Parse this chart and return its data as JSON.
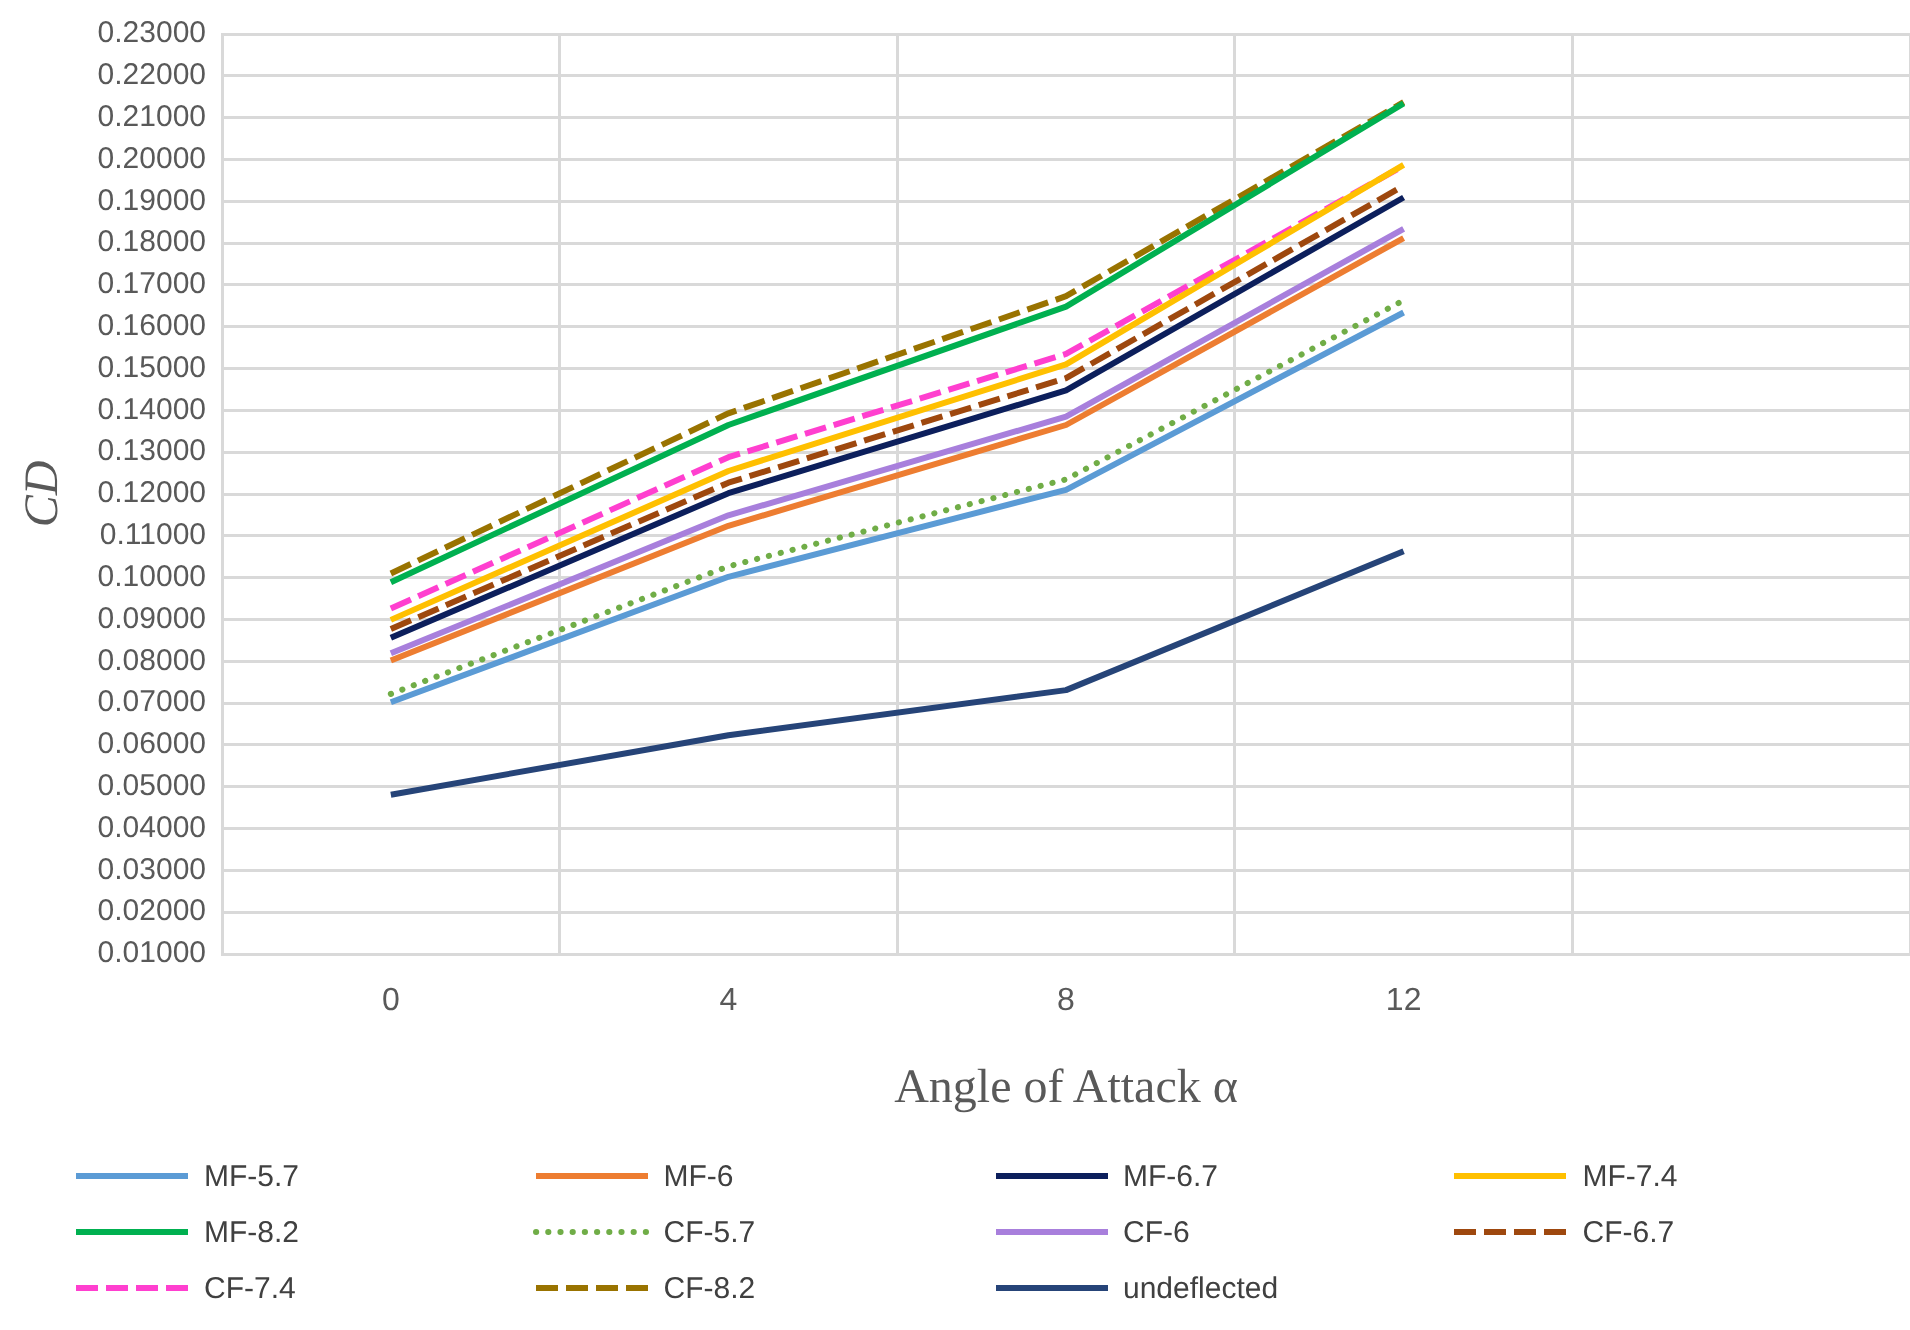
{
  "chart_data": {
    "type": "line",
    "xlabel": "Angle of Attack α",
    "ylabel": "CD",
    "categories": [
      "0",
      "4",
      "8",
      "12",
      null
    ],
    "ylim": [
      0.01,
      0.23
    ],
    "yticks": [
      {
        "value": 0.01,
        "label": "0.01000"
      },
      {
        "value": 0.02,
        "label": "0.02000"
      },
      {
        "value": 0.03,
        "label": "0.03000"
      },
      {
        "value": 0.04,
        "label": "0.04000"
      },
      {
        "value": 0.05,
        "label": "0.05000"
      },
      {
        "value": 0.06,
        "label": "0.06000"
      },
      {
        "value": 0.07,
        "label": "0.07000"
      },
      {
        "value": 0.08,
        "label": "0.08000"
      },
      {
        "value": 0.09,
        "label": "0.09000"
      },
      {
        "value": 0.1,
        "label": "0.10000"
      },
      {
        "value": 0.11,
        "label": "0.11000"
      },
      {
        "value": 0.12,
        "label": "0.12000"
      },
      {
        "value": 0.13,
        "label": "0.13000"
      },
      {
        "value": 0.14,
        "label": "0.14000"
      },
      {
        "value": 0.15,
        "label": "0.15000"
      },
      {
        "value": 0.16,
        "label": "0.16000"
      },
      {
        "value": 0.17,
        "label": "0.17000"
      },
      {
        "value": 0.18,
        "label": "0.18000"
      },
      {
        "value": 0.19,
        "label": "0.19000"
      },
      {
        "value": 0.2,
        "label": "0.20000"
      },
      {
        "value": 0.21,
        "label": "0.21000"
      },
      {
        "value": 0.22,
        "label": "0.22000"
      },
      {
        "value": 0.23,
        "label": "0.23000"
      }
    ],
    "grid": true,
    "legend": "bottom",
    "marker": "none",
    "series": [
      {
        "name": "MF-5.7",
        "color": "#5b9bd5",
        "line_style": "solid",
        "values": [
          0.0702,
          0.1002,
          0.121,
          0.1634,
          null
        ]
      },
      {
        "name": "MF-6",
        "color": "#ed7d31",
        "line_style": "solid",
        "values": [
          0.0802,
          0.1124,
          0.1365,
          0.1812,
          null
        ]
      },
      {
        "name": "MF-6.7",
        "color": "#0c1f5c",
        "line_style": "solid",
        "values": [
          0.0856,
          0.1202,
          0.1448,
          0.1909,
          null
        ]
      },
      {
        "name": "MF-7.4",
        "color": "#ffc000",
        "line_style": "solid",
        "values": [
          0.0899,
          0.1255,
          0.151,
          0.1987,
          null
        ]
      },
      {
        "name": "MF-8.2",
        "color": "#00b050",
        "line_style": "solid",
        "values": [
          0.0989,
          0.1365,
          0.1648,
          0.2134,
          null
        ]
      },
      {
        "name": "CF-5.7",
        "color": "#70ad47",
        "line_style": "dotted",
        "values": [
          0.0722,
          0.1027,
          0.1235,
          0.1663,
          null
        ]
      },
      {
        "name": "CF-6",
        "color": "#a87fdc",
        "line_style": "solid",
        "values": [
          0.0819,
          0.1149,
          0.1385,
          0.1834,
          null
        ]
      },
      {
        "name": "CF-6.7",
        "color": "#9e480e",
        "line_style": "dashed",
        "values": [
          0.0877,
          0.1227,
          0.1477,
          0.1937,
          null
        ]
      },
      {
        "name": "CF-7.4",
        "color": "#ff3fcf",
        "line_style": "dashed",
        "values": [
          0.0926,
          0.1288,
          0.1535,
          0.1985,
          null
        ]
      },
      {
        "name": "CF-8.2",
        "color": "#997300",
        "line_style": "dashed",
        "values": [
          0.101,
          0.1393,
          0.1673,
          0.2137,
          null
        ]
      },
      {
        "name": "undeflected",
        "color": "#264478",
        "line_style": "solid",
        "values": [
          0.0481,
          0.0623,
          0.0731,
          0.1063,
          null
        ]
      }
    ]
  }
}
